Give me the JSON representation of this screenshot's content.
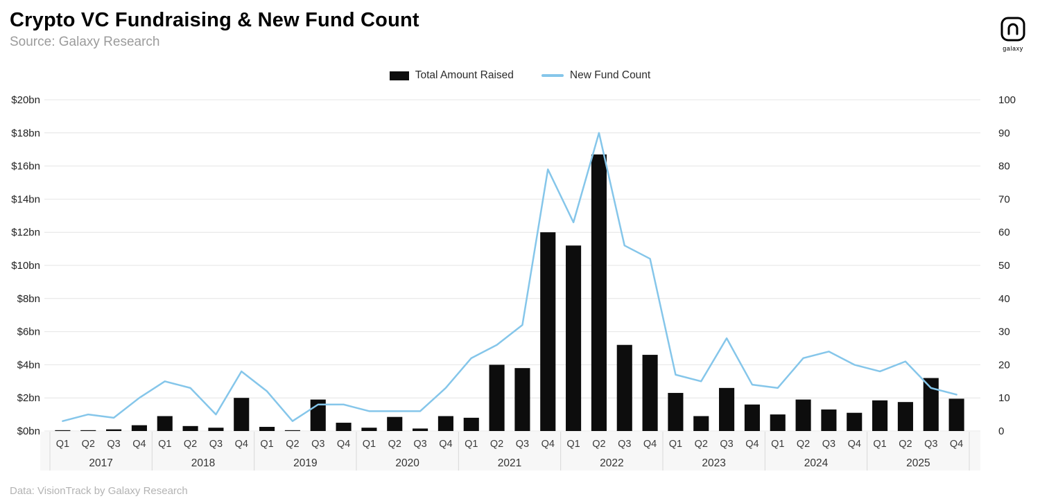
{
  "header": {
    "title": "Crypto VC Fundraising & New Fund Count",
    "source": "Source: Galaxy Research",
    "logo_text": "galaxy"
  },
  "legend": {
    "bars_label": "Total Amount Raised",
    "line_label": "New Fund Count"
  },
  "footer": {
    "note": "Data: VisionTrack by Galaxy Research"
  },
  "chart_data": {
    "type": "bar",
    "subtype": "combo-bar-line-dual-axis",
    "title": "Crypto VC Fundraising & New Fund Count",
    "grid": "horizontal",
    "legend_position": "top-center",
    "categories": [
      "Q1",
      "Q2",
      "Q3",
      "Q4",
      "Q1",
      "Q2",
      "Q3",
      "Q4",
      "Q1",
      "Q2",
      "Q3",
      "Q4",
      "Q1",
      "Q2",
      "Q3",
      "Q4",
      "Q1",
      "Q2",
      "Q3",
      "Q4",
      "Q1",
      "Q2",
      "Q3",
      "Q4",
      "Q1",
      "Q2",
      "Q3",
      "Q4",
      "Q1",
      "Q2",
      "Q3",
      "Q4",
      "Q1",
      "Q2",
      "Q3",
      "Q4"
    ],
    "year_groups": [
      "2017",
      "2018",
      "2019",
      "2020",
      "2021",
      "2022",
      "2023",
      "2024",
      "2025"
    ],
    "left_axis": {
      "min": 0,
      "max": 20,
      "step": 2,
      "ticks": [
        "$0bn",
        "$2bn",
        "$4bn",
        "$6bn",
        "$8bn",
        "$10bn",
        "$12bn",
        "$14bn",
        "$16bn",
        "$18bn",
        "$20bn"
      ]
    },
    "right_axis": {
      "min": 0,
      "max": 100,
      "step": 10,
      "ticks": [
        "0",
        "10",
        "20",
        "30",
        "40",
        "50",
        "60",
        "70",
        "80",
        "90",
        "100"
      ]
    },
    "series": [
      {
        "name": "Total Amount Raised",
        "type": "bar",
        "axis": "left",
        "color": "#0d0d0d",
        "values": [
          0.05,
          0.05,
          0.1,
          0.35,
          0.9,
          0.3,
          0.2,
          2.0,
          0.25,
          0.05,
          1.9,
          0.5,
          0.2,
          0.85,
          0.15,
          0.9,
          0.8,
          4.0,
          3.8,
          12.0,
          11.2,
          16.7,
          5.2,
          4.6,
          2.3,
          0.9,
          2.6,
          1.6,
          1.0,
          1.9,
          1.3,
          1.1,
          1.85,
          1.75,
          3.2,
          1.95
        ]
      },
      {
        "name": "New Fund Count",
        "type": "line",
        "axis": "right",
        "color": "#85c6ea",
        "values": [
          3,
          5,
          4,
          10,
          15,
          13,
          5,
          18,
          12,
          3,
          8,
          8,
          6,
          6,
          6,
          13,
          22,
          26,
          32,
          79,
          63,
          90,
          56,
          52,
          17,
          15,
          28,
          14,
          13,
          22,
          24,
          20,
          18,
          21,
          13,
          11
        ]
      }
    ]
  }
}
